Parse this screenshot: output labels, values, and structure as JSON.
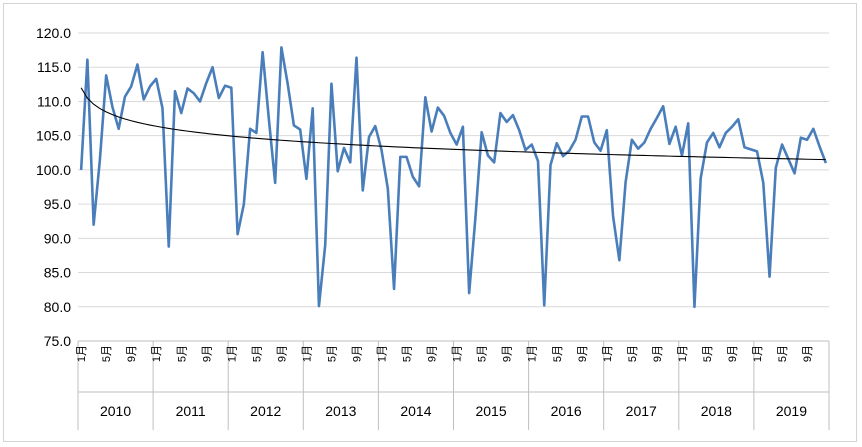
{
  "chart_data": {
    "type": "line",
    "title": "",
    "xlabel": "",
    "ylabel": "",
    "ylim": [
      75,
      120
    ],
    "y_step": 5,
    "grid": "horizontal",
    "legend": "none",
    "month_tick_labels": [
      "1月",
      "5月",
      "9月"
    ],
    "years": [
      "2010",
      "2011",
      "2012",
      "2013",
      "2014",
      "2015",
      "2016",
      "2017",
      "2018",
      "2019"
    ],
    "series": [
      {
        "color": "#4a7ebb",
        "values": [
          100.0,
          116.1,
          92.0,
          101.5,
          113.8,
          109.2,
          106.0,
          110.7,
          112.2,
          115.4,
          110.3,
          112.2,
          113.3,
          109.0,
          88.8,
          111.5,
          108.3,
          111.9,
          111.2,
          110.0,
          112.7,
          115.0,
          110.5,
          112.3,
          112.0,
          90.6,
          95.0,
          106.0,
          105.4,
          117.2,
          107.4,
          98.1,
          117.9,
          112.6,
          106.5,
          105.9,
          98.7,
          109.0,
          80.1,
          89.0,
          112.6,
          99.8,
          103.2,
          101.1,
          116.4,
          97.0,
          104.8,
          106.4,
          102.9,
          97.3,
          82.6,
          101.9,
          101.9,
          99.0,
          97.6,
          110.6,
          105.6,
          109.1,
          107.9,
          105.4,
          103.7,
          106.3,
          82.0,
          93.0,
          105.5,
          102.1,
          101.1,
          108.3,
          107.0,
          108.0,
          105.8,
          102.9,
          103.7,
          101.3,
          80.2,
          100.7,
          103.9,
          102.0,
          102.8,
          104.4,
          107.8,
          107.8,
          104.0,
          102.8,
          105.8,
          93.2,
          86.8,
          98.2,
          104.4,
          103.1,
          104.0,
          106.0,
          107.6,
          109.3,
          103.8,
          106.3,
          102.1,
          106.8,
          80.0,
          98.8,
          104.0,
          105.4,
          103.3,
          105.4,
          106.3,
          107.4,
          103.3,
          103.0,
          102.7,
          98.1,
          84.4,
          100.3,
          103.7,
          101.6,
          99.5,
          104.7,
          104.4,
          106.0,
          103.4,
          101.0
        ]
      },
      {
        "type": "trendline",
        "color": "#000000",
        "values": [
          112.0,
          101.5
        ]
      }
    ]
  }
}
